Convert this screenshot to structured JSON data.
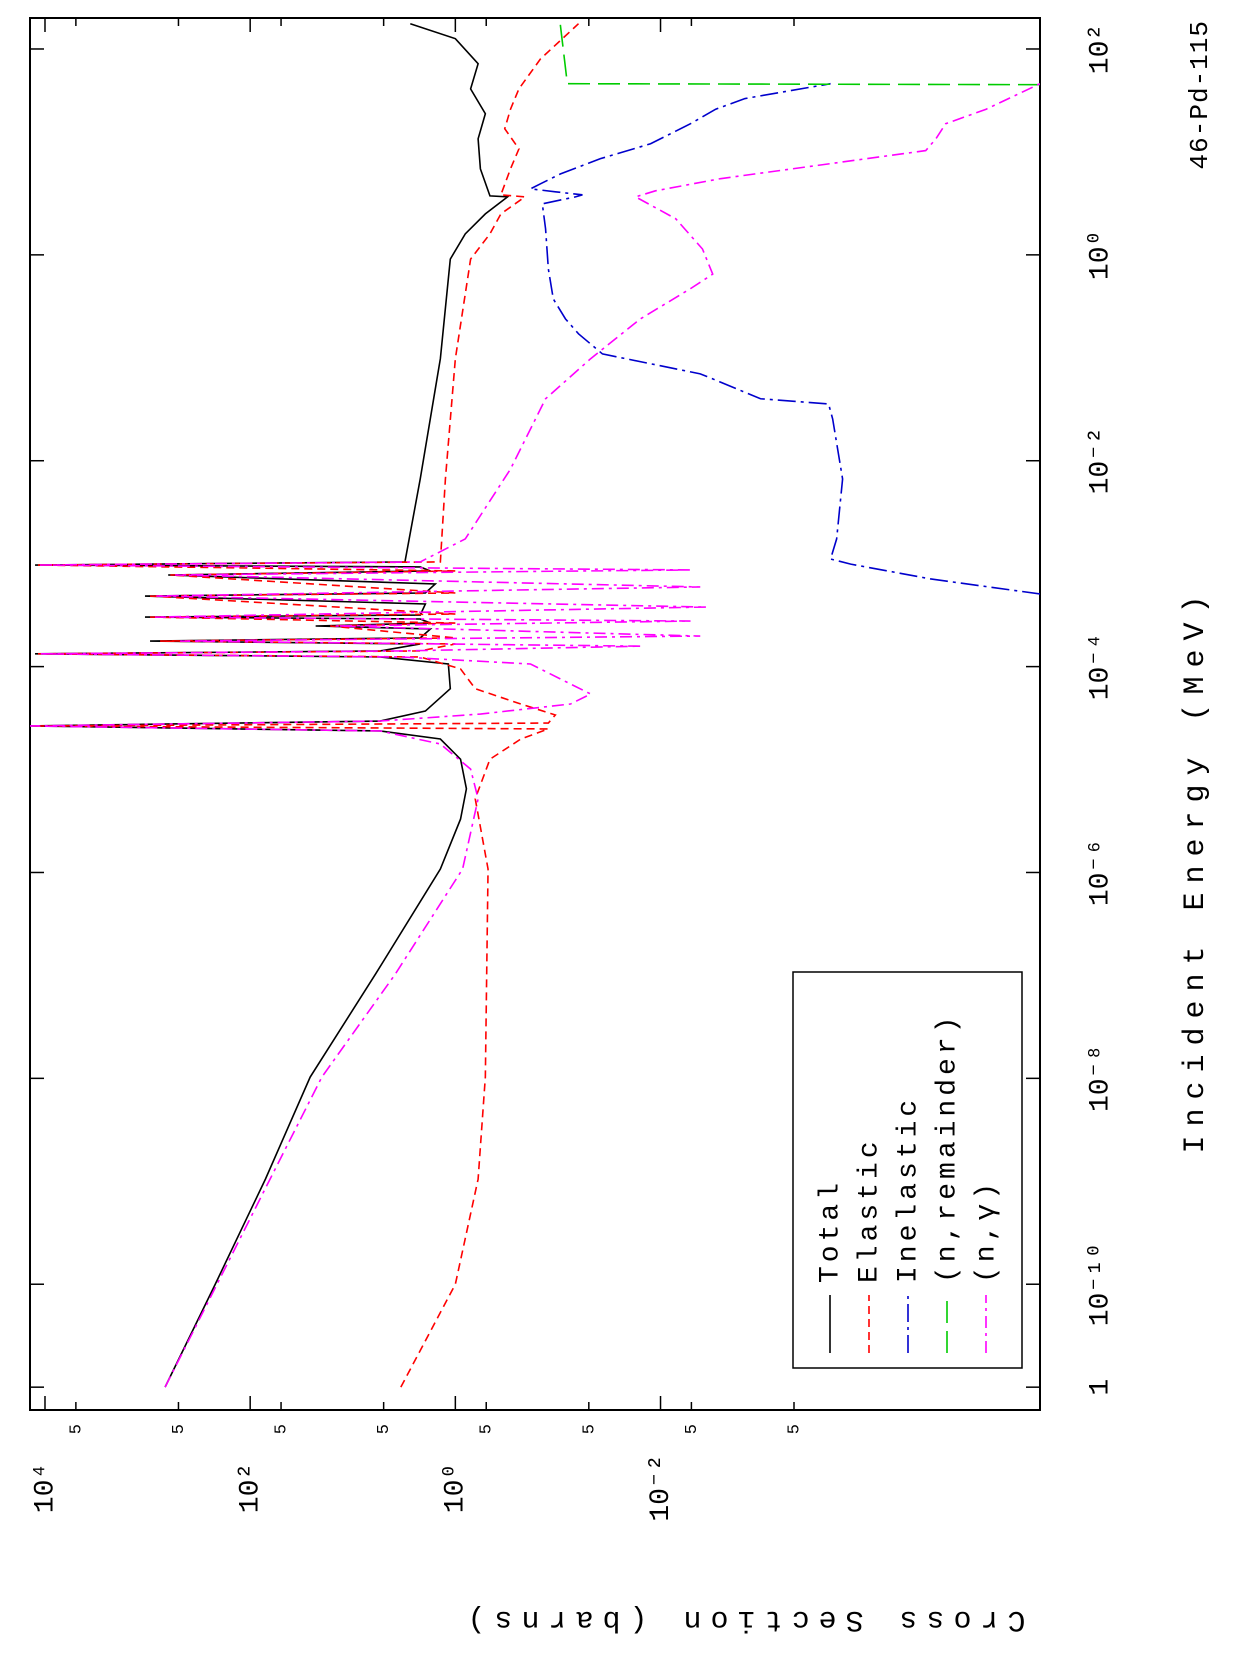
{
  "chart_data": {
    "type": "line",
    "title": "46-Pd-115",
    "x_label": "Incident Energy (MeV)",
    "y_label": "Cross Section (barns)",
    "xlog": true,
    "ylog": true,
    "grid": false,
    "legend": "lower left",
    "xlim": [
      6e-12,
      200
    ],
    "ylim": [
      2e-06,
      14000
    ],
    "xticks": [
      {
        "value": 1e-11,
        "label": "1"
      },
      {
        "value": 1e-10,
        "label": "10⁻¹⁰"
      },
      {
        "value": 1e-08,
        "label": "10⁻⁸"
      },
      {
        "value": 1e-06,
        "label": "10⁻⁶"
      },
      {
        "value": 0.0001,
        "label": "10⁻⁴"
      },
      {
        "value": 0.01,
        "label": "10⁻²"
      },
      {
        "value": 1,
        "label": "10⁰"
      },
      {
        "value": 100,
        "label": "10²"
      }
    ],
    "yticks": [
      {
        "value": 10000,
        "label": "10⁴"
      },
      {
        "value": 5000,
        "label": "5"
      },
      {
        "value": 500,
        "label": "5"
      },
      {
        "value": 100,
        "label": "10²"
      },
      {
        "value": 50,
        "label": "5"
      },
      {
        "value": 5,
        "label": "5"
      },
      {
        "value": 1,
        "label": "10⁰"
      },
      {
        "value": 0.5,
        "label": "5"
      },
      {
        "value": 0.05,
        "label": "5"
      },
      {
        "value": 0.01,
        "label": "10⁻²"
      },
      {
        "value": 0.005,
        "label": "5"
      },
      {
        "value": 0.0005,
        "label": "5"
      }
    ],
    "series": [
      {
        "name": "Total",
        "color": "#000000",
        "dash": "solid",
        "x": [
          1e-11,
          1e-10,
          1.05e-09,
          1.03e-08,
          1.03e-07,
          1.08e-06,
          3.3e-06,
          6.5e-06,
          1.26e-05,
          1.98e-05,
          2.37e-05,
          2.65e-05,
          2.96e-05,
          3.7e-05,
          6.1e-05,
          0.000106,
          0.000124,
          0.000133,
          0.000142,
          0.000166,
          0.000177,
          0.00019,
          0.000232,
          0.000248,
          0.000265,
          0.00029,
          0.000303,
          0.000317,
          0.000406,
          0.000485,
          0.000519,
          0.000635,
          0.000776,
          0.00085,
          0.00093,
          0.00097,
          0.00104,
          0.00665,
          0.098,
          0.91,
          1.6,
          2.5,
          3.66,
          3.74,
          6.85,
          13.4,
          23.5,
          41,
          72,
          126,
          176
        ],
        "values": [
          675,
          219,
          71,
          26,
          6,
          1.4,
          0.89,
          0.78,
          0.89,
          1.4,
          5.4,
          14000,
          5.4,
          1.96,
          1.12,
          1.17,
          5.4,
          12500,
          5.4,
          2.2,
          946,
          2.2,
          1.75,
          23,
          1.75,
          2.2,
          1060,
          2.2,
          1.96,
          1060,
          1.96,
          1.57,
          630,
          1.75,
          2.2,
          12500,
          3.1,
          2.2,
          1.4,
          1.12,
          0.8,
          0.51,
          0.31,
          0.46,
          0.57,
          0.6,
          0.51,
          0.71,
          0.6,
          1.0,
          2.75
        ]
      },
      {
        "name": "Elastic",
        "color": "#ff0000",
        "dash": "dashed",
        "x": [
          1e-11,
          1e-10,
          1.05e-09,
          1.03e-08,
          1.08e-06,
          5.2e-06,
          1.26e-05,
          1.98e-05,
          2.48e-05,
          2.65e-05,
          2.83e-05,
          3.39e-05,
          4.33e-05,
          6.1e-05,
          9.5e-05,
          0.000124,
          0.000133,
          0.000142,
          0.000166,
          0.000177,
          0.00019,
          0.000248,
          0.000265,
          0.000303,
          0.000324,
          0.000485,
          0.000519,
          0.000776,
          0.00085,
          0.00097,
          0.00104,
          0.00665,
          0.098,
          0.91,
          1.6,
          2.5,
          3.66,
          3.83,
          6.85,
          10.7,
          16.8,
          26,
          41,
          80,
          176
        ],
        "values": [
          3.4,
          1.0,
          0.6,
          0.51,
          0.48,
          0.64,
          0.46,
          0.23,
          0.124,
          13400,
          0.124,
          0.106,
          0.23,
          0.64,
          0.89,
          2.2,
          11700,
          2.2,
          1.0,
          755,
          1.0,
          16.6,
          1.0,
          946,
          1.0,
          946,
          1.0,
          600,
          1.0,
          11700,
          1.4,
          1.25,
          1.0,
          0.71,
          0.46,
          0.36,
          0.21,
          0.36,
          0.29,
          0.24,
          0.33,
          0.29,
          0.24,
          0.148,
          0.063
        ]
      },
      {
        "name": "Inelastic",
        "color": "#0000cc",
        "dash": "dash-dot-long",
        "x": [
          0.000508,
          0.00071,
          0.00099,
          0.00111,
          0.00174,
          0.00665,
          0.0255,
          0.0356,
          0.04,
          0.0624,
          0.0698,
          0.109,
          0.171,
          0.239,
          0.373,
          0.73,
          1.79,
          3.13,
          3.66,
          3.83,
          4.1,
          4.38,
          4.9,
          6.1,
          8.6,
          12,
          18.8,
          26,
          33,
          46
        ],
        "values": [
          2e-06,
          2.32e-05,
          0.00014,
          0.00022,
          0.000192,
          0.000168,
          0.00021,
          0.00023,
          0.00106,
          0.0031,
          0.0041,
          0.0368,
          0.063,
          0.0845,
          0.111,
          0.124,
          0.132,
          0.142,
          0.0675,
          0.0577,
          0.106,
          0.185,
          0.148,
          0.095,
          0.0385,
          0.0125,
          0.0051,
          0.0029,
          0.0015,
          0.00022
        ]
      },
      {
        "name": "(n,remainder)",
        "color": "#00cc00",
        "dash": "long-dash",
        "x": [
          45,
          46,
          176
        ],
        "values": [
          2e-06,
          0.081,
          0.095
        ]
      },
      {
        "name": "(n,γ)",
        "color": "#ff00ff",
        "dash": "dash-dot",
        "x": [
          1e-11,
          1.05e-09,
          1.03e-08,
          1.03e-07,
          1.08e-06,
          5.2e-06,
          1.01e-05,
          1.77e-05,
          2.37e-05,
          2.65e-05,
          2.96e-05,
          3.46e-05,
          4.33e-05,
          5.42e-05,
          7.6e-05,
          0.000106,
          0.000124,
          0.000133,
          0.000142,
          0.000158,
          0.000177,
          0.000198,
          0.000248,
          0.000277,
          0.000303,
          0.000379,
          0.000485,
          0.000594,
          0.000776,
          0.00087,
          0.00097,
          0.00104,
          0.00174,
          0.0083,
          0.04,
          0.098,
          0.239,
          0.47,
          0.65,
          1.14,
          2.24,
          3.66,
          4.19,
          5.5,
          7.7,
          10.3,
          13.4,
          18.8,
          26,
          46
        ],
        "values": [
          675,
          64,
          20,
          3.85,
          0.85,
          0.6,
          0.71,
          1.4,
          5.4,
          14000,
          5.4,
          0.57,
          0.0755,
          0.048,
          0.095,
          0.185,
          3.4,
          11200,
          3.4,
          0.0157,
          482,
          0.0041,
          14.8,
          0.0051,
          845,
          0.0036,
          845,
          0.0041,
          540,
          0.0051,
          11200,
          2.2,
          0.8,
          0.29,
          0.132,
          0.048,
          0.0157,
          0.0051,
          0.0031,
          0.0039,
          0.0071,
          0.0175,
          0.0112,
          0.0026,
          0.00022,
          2.6e-05,
          2.07e-05,
          1.66e-05,
          6.7e-06,
          2e-06
        ]
      }
    ]
  }
}
